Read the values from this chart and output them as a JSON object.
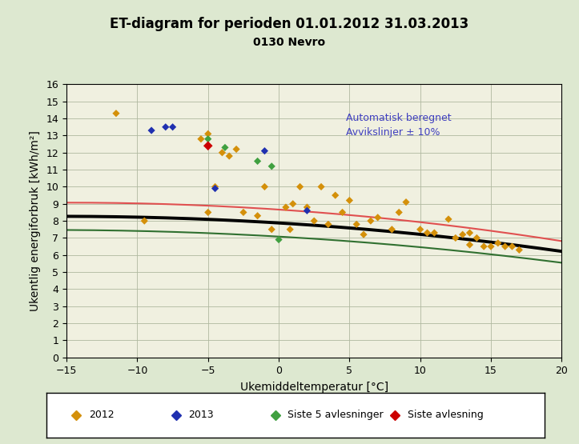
{
  "title": "ET-diagram for perioden 01.01.2012 31.03.2013",
  "subtitle": "0130 Nevro",
  "xlabel": "Ukemiddeltemperatur [°C]",
  "ylabel": "Ukentlig energiforbruk [kWh/m²]",
  "xlim": [
    -15,
    20
  ],
  "ylim": [
    0,
    16
  ],
  "xticks": [
    -15,
    -10,
    -5,
    0,
    5,
    10,
    15,
    20
  ],
  "yticks": [
    0,
    1,
    2,
    3,
    4,
    5,
    6,
    7,
    8,
    9,
    10,
    11,
    12,
    13,
    14,
    15,
    16
  ],
  "bg_color": "#dde8d0",
  "plot_bg_color": "#f0f0e0",
  "annotation_text": "Automatisk beregnet\nAvvikslinjer ± 10%",
  "annotation_color": "#4040c0",
  "data_2012": [
    [
      -11.5,
      14.3
    ],
    [
      -9.5,
      8.0
    ],
    [
      -5.5,
      12.8
    ],
    [
      -5.0,
      8.5
    ],
    [
      -5.0,
      13.1
    ],
    [
      -4.5,
      10.0
    ],
    [
      -4.0,
      12.0
    ],
    [
      -3.5,
      11.8
    ],
    [
      -3.0,
      12.2
    ],
    [
      -2.5,
      8.5
    ],
    [
      -1.5,
      8.3
    ],
    [
      -1.0,
      10.0
    ],
    [
      -0.5,
      7.5
    ],
    [
      0.5,
      8.8
    ],
    [
      0.8,
      7.5
    ],
    [
      1.0,
      9.0
    ],
    [
      1.5,
      10.0
    ],
    [
      2.0,
      8.8
    ],
    [
      2.5,
      8.0
    ],
    [
      3.0,
      10.0
    ],
    [
      3.5,
      7.8
    ],
    [
      4.0,
      9.5
    ],
    [
      4.5,
      8.5
    ],
    [
      5.0,
      9.2
    ],
    [
      5.5,
      7.8
    ],
    [
      6.0,
      7.2
    ],
    [
      6.5,
      8.0
    ],
    [
      7.0,
      8.2
    ],
    [
      8.0,
      7.5
    ],
    [
      8.5,
      8.5
    ],
    [
      9.0,
      9.1
    ],
    [
      10.0,
      7.5
    ],
    [
      10.5,
      7.3
    ],
    [
      11.0,
      7.3
    ],
    [
      12.0,
      8.1
    ],
    [
      12.5,
      7.0
    ],
    [
      13.0,
      7.2
    ],
    [
      13.5,
      7.3
    ],
    [
      13.5,
      6.6
    ],
    [
      14.0,
      7.0
    ],
    [
      14.5,
      6.5
    ],
    [
      15.0,
      6.5
    ],
    [
      15.5,
      6.7
    ],
    [
      16.0,
      6.5
    ],
    [
      16.5,
      6.5
    ],
    [
      17.0,
      6.3
    ]
  ],
  "data_2013": [
    [
      -9.0,
      13.3
    ],
    [
      -8.0,
      13.5
    ],
    [
      -7.5,
      13.5
    ],
    [
      -4.5,
      9.9
    ],
    [
      2.0,
      8.6
    ],
    [
      -1.0,
      12.1
    ]
  ],
  "data_siste5": [
    [
      -5.0,
      12.8
    ],
    [
      -3.8,
      12.3
    ],
    [
      -1.5,
      11.5
    ],
    [
      -0.5,
      11.2
    ],
    [
      0.0,
      6.9
    ]
  ],
  "data_siste": [
    [
      -5.0,
      12.4
    ]
  ],
  "color_2012": "#d4900a",
  "color_2013": "#2030b0",
  "color_siste5": "#40a040",
  "color_siste": "#cc0000",
  "legend_labels": [
    "2012",
    "2013",
    "Siste 5 avlesninger",
    "Siste avlesning"
  ]
}
